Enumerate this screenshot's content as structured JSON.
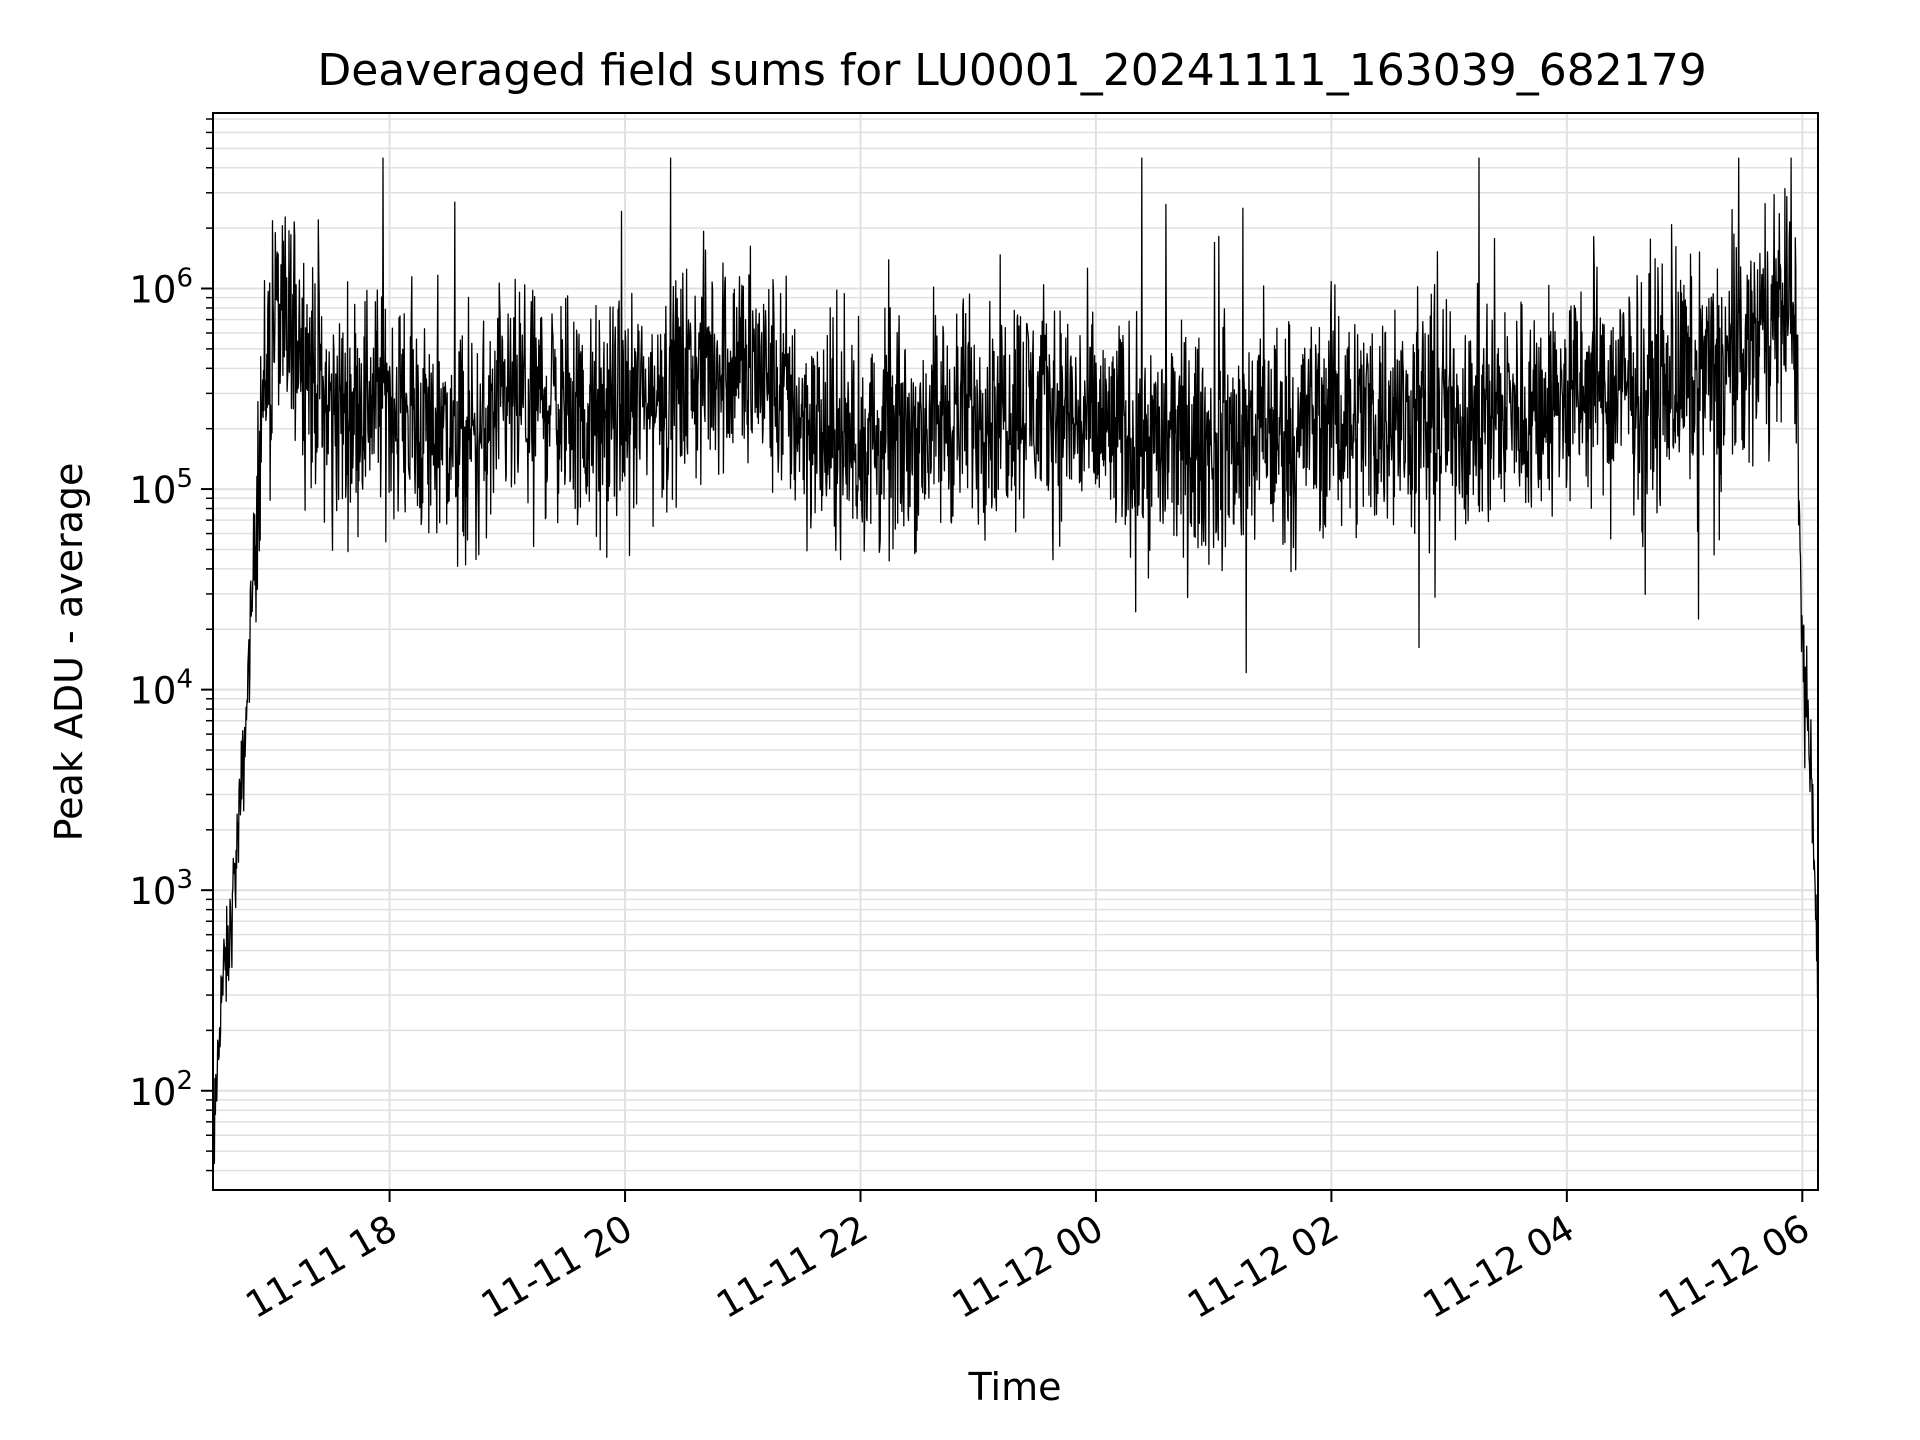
{
  "chart_data": {
    "type": "line",
    "title": "Deaveraged field sums for LU0001_20241111_163039_682179",
    "xlabel": "Time",
    "ylabel": "Peak ADU - average",
    "yscale": "log",
    "ylim": [
      32,
      7500000
    ],
    "xlim": [
      "2024-11-11 16:30",
      "2024-11-12 06:08"
    ],
    "x_ticks": [
      {
        "label": "11-11 18",
        "t": "2024-11-11 18:00"
      },
      {
        "label": "11-11 20",
        "t": "2024-11-11 20:00"
      },
      {
        "label": "11-11 22",
        "t": "2024-11-11 22:00"
      },
      {
        "label": "11-12 00",
        "t": "2024-11-12 00:00"
      },
      {
        "label": "11-12 02",
        "t": "2024-11-12 02:00"
      },
      {
        "label": "11-12 04",
        "t": "2024-11-12 04:00"
      },
      {
        "label": "11-12 06",
        "t": "2024-11-12 06:00"
      }
    ],
    "y_ticks": [
      {
        "base": "10",
        "exp": "2",
        "value": 100
      },
      {
        "base": "10",
        "exp": "3",
        "value": 1000
      },
      {
        "base": "10",
        "exp": "4",
        "value": 10000
      },
      {
        "base": "10",
        "exp": "5",
        "value": 100000
      },
      {
        "base": "10",
        "exp": "6",
        "value": 1000000
      }
    ],
    "grid": true,
    "legend": "none",
    "line_color": "#000000",
    "grid_color": "#e0e0e0",
    "series": [
      {
        "x": [
          "2024-11-11 16:30",
          "2024-11-11 16:34",
          "2024-11-11 16:38",
          "2024-11-11 16:42",
          "2024-11-11 16:46",
          "2024-11-11 16:50",
          "2024-11-11 16:54",
          "2024-11-11 16:58",
          "2024-11-11 17:02",
          "2024-11-11 17:06",
          "2024-11-11 17:10",
          "2024-11-11 17:20",
          "2024-11-11 17:30",
          "2024-11-11 17:40",
          "2024-11-11 17:50",
          "2024-11-11 18:00",
          "2024-11-11 18:20",
          "2024-11-11 18:40",
          "2024-11-11 19:00",
          "2024-11-11 19:20",
          "2024-11-11 19:40",
          "2024-11-11 20:00",
          "2024-11-11 20:20",
          "2024-11-11 20:40",
          "2024-11-11 21:00",
          "2024-11-11 21:20",
          "2024-11-11 21:40",
          "2024-11-11 22:00",
          "2024-11-11 22:20",
          "2024-11-11 22:40",
          "2024-11-11 23:00",
          "2024-11-11 23:20",
          "2024-11-11 23:40",
          "2024-11-12 00:00",
          "2024-11-12 00:20",
          "2024-11-12 00:40",
          "2024-11-12 01:00",
          "2024-11-12 01:20",
          "2024-11-12 01:40",
          "2024-11-12 02:00",
          "2024-11-12 02:20",
          "2024-11-12 02:40",
          "2024-11-12 03:00",
          "2024-11-12 03:20",
          "2024-11-12 03:40",
          "2024-11-12 04:00",
          "2024-11-12 04:20",
          "2024-11-12 04:40",
          "2024-11-12 05:00",
          "2024-11-12 05:20",
          "2024-11-12 05:40",
          "2024-11-12 05:50",
          "2024-11-12 05:56",
          "2024-11-12 05:58",
          "2024-11-12 06:00",
          "2024-11-12 06:02",
          "2024-11-12 06:04",
          "2024-11-12 06:06",
          "2024-11-12 06:08"
        ],
        "y": [
          40,
          300,
          500,
          1500,
          5000,
          30000,
          200000,
          500000,
          800000,
          600000,
          700000,
          400000,
          250000,
          250000,
          300000,
          280000,
          200000,
          150000,
          250000,
          300000,
          200000,
          250000,
          300000,
          400000,
          450000,
          300000,
          180000,
          160000,
          180000,
          220000,
          250000,
          280000,
          250000,
          200000,
          180000,
          160000,
          160000,
          180000,
          200000,
          240000,
          230000,
          220000,
          230000,
          240000,
          250000,
          280000,
          300000,
          320000,
          350000,
          400000,
          600000,
          800000,
          1000000,
          100000,
          15000,
          8000,
          5000,
          1500,
          400
        ]
      }
    ]
  }
}
